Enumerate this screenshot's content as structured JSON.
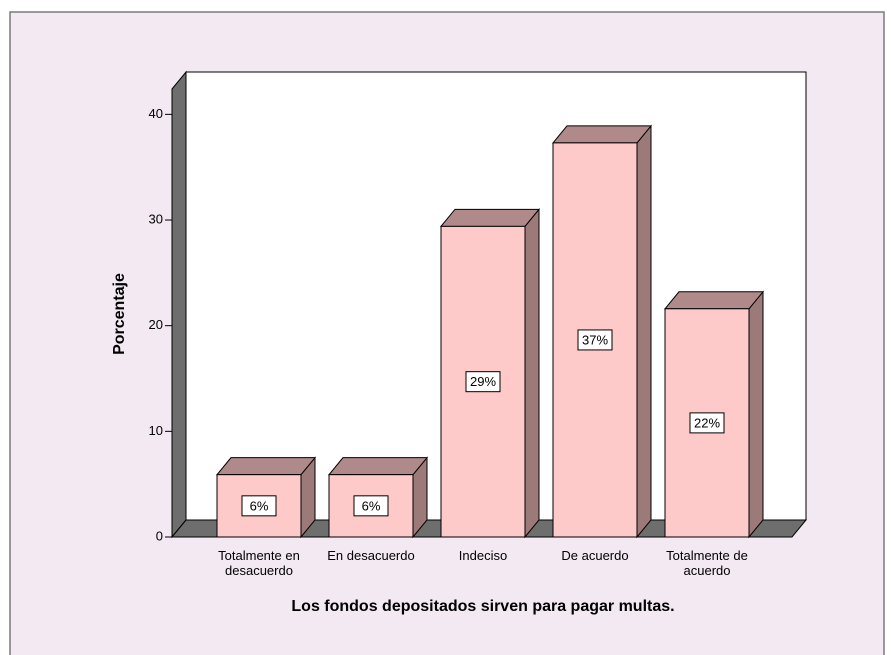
{
  "chart_data": {
    "type": "bar3d",
    "x_label": "Los fondos depositados sirven para pagar multas.",
    "y_label": "Porcentaje",
    "categories": [
      "Totalmente en desacuerdo",
      "En desacuerdo",
      "Indeciso",
      "De acuerdo",
      "Totalmente de acuerdo"
    ],
    "values": [
      5.9,
      5.9,
      29.4,
      37.3,
      21.6
    ],
    "value_labels": [
      "6%",
      "6%",
      "29%",
      "37%",
      "22%"
    ],
    "color": "#fdc9c9",
    "ylim": [
      0,
      42.4
    ],
    "yticks": [
      0,
      10,
      20,
      30,
      40
    ]
  }
}
